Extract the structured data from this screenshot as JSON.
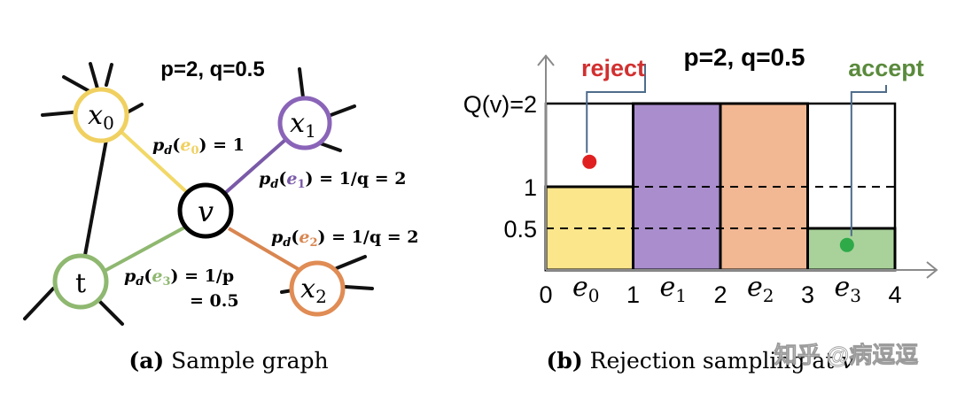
{
  "left_panel": {
    "params": "p=2, q=0.5",
    "caption_label": "(a)",
    "caption_text": "Sample graph",
    "nodes": {
      "x0": {
        "base": "x",
        "sub": "0",
        "color": "#f0d060"
      },
      "x1": {
        "base": "x",
        "sub": "1",
        "color": "#8a64b8"
      },
      "v": {
        "base": "v",
        "sub": "",
        "color": "#000000"
      },
      "t": {
        "base": "t",
        "sub": "",
        "color": "#8fb870"
      },
      "x2": {
        "base": "x",
        "sub": "2",
        "color": "#e08c54"
      }
    },
    "edge_labels": {
      "e0": {
        "pre": "p",
        "psub": "d",
        "e": "e",
        "esub": "0",
        "post": ") = 1"
      },
      "e1": {
        "pre": "p",
        "psub": "d",
        "e": "e",
        "esub": "1",
        "post": ") = 1/q = 2"
      },
      "e2": {
        "pre": "p",
        "psub": "d",
        "e": "e",
        "esub": "2",
        "post": ") = 1/q = 2"
      },
      "e3": {
        "pre": "p",
        "psub": "d",
        "e": "e",
        "esub": "3",
        "post": ") = 1/p",
        "line2": "= 0.5"
      }
    }
  },
  "right_panel": {
    "params": "p=2, q=0.5",
    "reject_label": "reject",
    "accept_label": "accept",
    "caption_label": "(b)",
    "caption_text": "Rejection sampling at",
    "caption_var": "v",
    "watermark": "知乎 @病逗逗"
  },
  "chart_data": {
    "type": "bar",
    "categories": [
      "e0",
      "e1",
      "e2",
      "e3"
    ],
    "category_labels": [
      {
        "base": "e",
        "sub": "0"
      },
      {
        "base": "e",
        "sub": "1"
      },
      {
        "base": "e",
        "sub": "2"
      },
      {
        "base": "e",
        "sub": "3"
      }
    ],
    "values": [
      1,
      2,
      2,
      0.5
    ],
    "colors": [
      "#fce68c",
      "#a98dcc",
      "#f2b893",
      "#a9d29a"
    ],
    "x_ticks": [
      "0",
      "1",
      "2",
      "3",
      "4"
    ],
    "y_ticks": [
      {
        "value": 2,
        "label": "Q(v)=2"
      },
      {
        "value": 1,
        "label": "1"
      },
      {
        "value": 0.5,
        "label": "0.5"
      }
    ],
    "dashed_levels": [
      1,
      0.5
    ],
    "xlim": [
      0,
      4
    ],
    "ylim": [
      0,
      2
    ],
    "points": [
      {
        "name": "reject",
        "x": 0.5,
        "y": 1.3,
        "color": "#e02020"
      },
      {
        "name": "accept",
        "x": 3.45,
        "y": 0.3,
        "color": "#2eaa48"
      }
    ]
  }
}
